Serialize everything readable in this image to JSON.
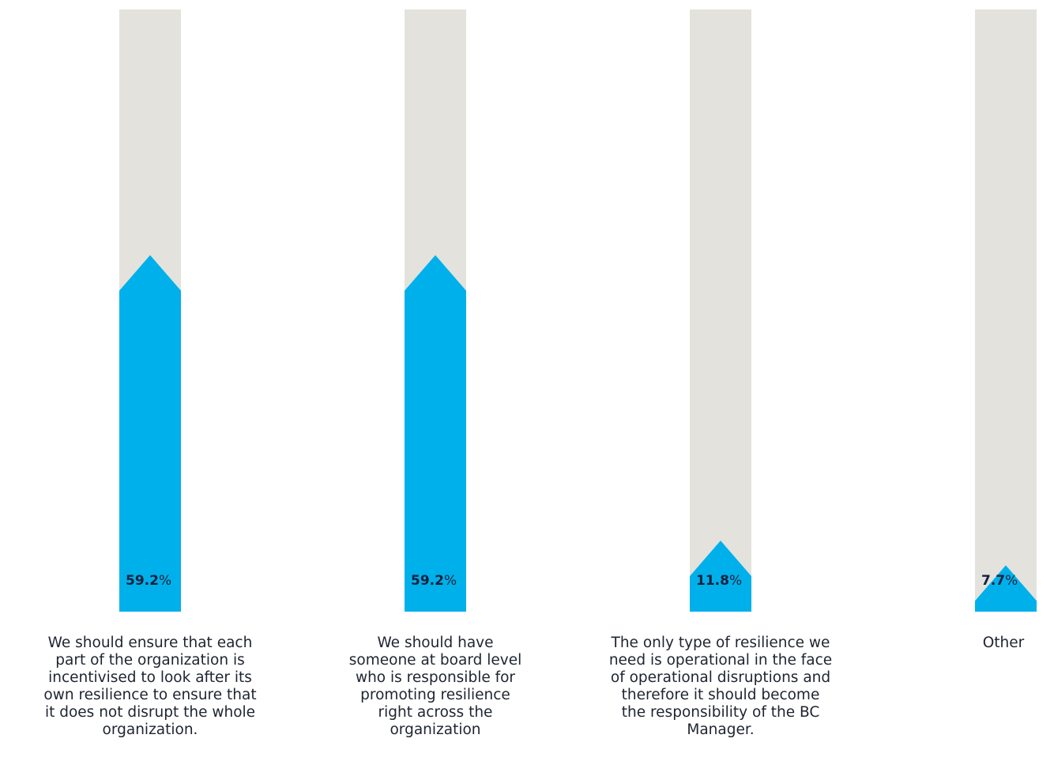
{
  "chart_data": {
    "type": "bar",
    "orientation": "vertical",
    "categories": [
      "We should ensure that each\npart of the organization is\nincentivised to look after its\nown resilience to ensure that\nit does not disrupt the whole\norganization.",
      "We should have\nsomeone at board level\nwho is responsible for\npromoting resilience\nright across the\norganization",
      "The only type of resilience we\nneed is operational in the face\nof operational disruptions and\ntherefore it should become\nthe responsibility of the BC\nManager.",
      "Other"
    ],
    "values": [
      59.2,
      59.2,
      11.8,
      7.7
    ],
    "value_labels": [
      "59.2",
      "59.2",
      "11.8",
      "7.7"
    ],
    "unit": "%",
    "ylim": [
      0,
      100
    ],
    "grid": false,
    "legend": "none",
    "colors": {
      "fill": "#00b0ea",
      "track": "#e3e2dd",
      "value_text": "#14213d",
      "label_text": "#1e2430"
    }
  }
}
